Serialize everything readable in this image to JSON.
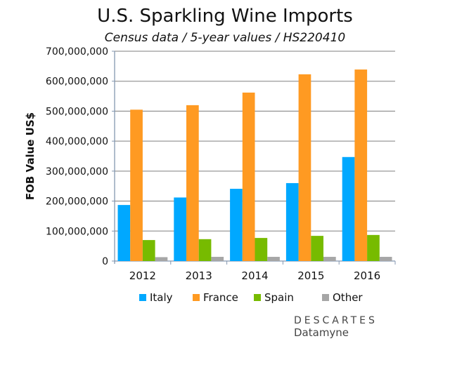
{
  "chart_data": {
    "type": "bar",
    "title": "U.S. Sparkling Wine Imports",
    "subtitle": "Census data / 5-year values / HS220410",
    "xlabel": "",
    "ylabel": "FOB Value US$",
    "ylim": [
      0,
      700000000
    ],
    "yticks": [
      "0",
      "100,000,000",
      "200,000,000",
      "300,000,000",
      "400,000,000",
      "500,000,000",
      "600,000,000",
      "700,000,000"
    ],
    "categories": [
      "2012",
      "2013",
      "2014",
      "2015",
      "2016"
    ],
    "grid": true,
    "legend": "bottom",
    "series": [
      {
        "name": "Italy",
        "color": "#00a8ff",
        "values": [
          187000000,
          212000000,
          241000000,
          260000000,
          347000000
        ]
      },
      {
        "name": "France",
        "color": "#ff9a22",
        "values": [
          505000000,
          520000000,
          562000000,
          623000000,
          639000000
        ]
      },
      {
        "name": "Spain",
        "color": "#77bb00",
        "values": [
          70000000,
          73000000,
          77000000,
          84000000,
          87000000
        ]
      },
      {
        "name": "Other",
        "color": "#a6a6a6",
        "values": [
          13000000,
          14000000,
          14000000,
          14000000,
          14000000
        ]
      }
    ]
  },
  "logo": {
    "line1": "DESCARTES",
    "line2": "Datamyne"
  }
}
